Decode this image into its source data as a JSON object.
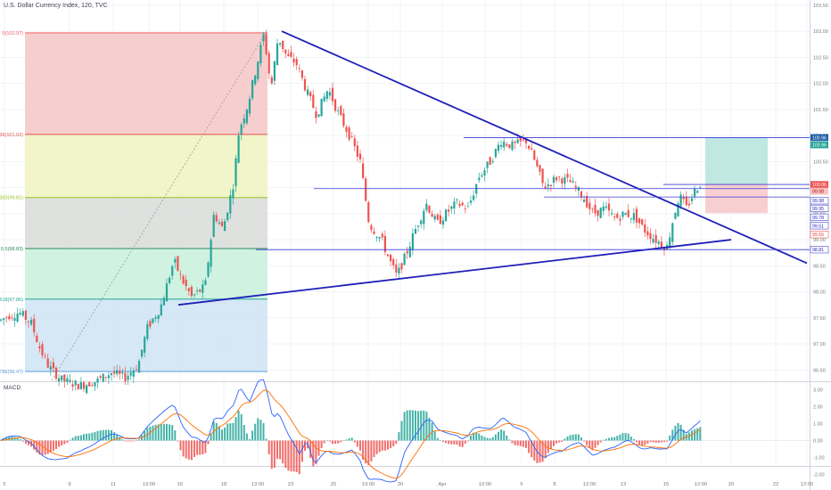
{
  "header": {
    "title": "U.S. Dollar Currency Index, 120, TVC"
  },
  "macd": {
    "label": "MACD"
  },
  "colors": {
    "up": "#26a69a",
    "down": "#ef5350",
    "trendline": "#1f1fb8",
    "hline": "#3a3ad6",
    "macd_line": "#2962ff",
    "signal_line": "#ff6d00",
    "grid": "#f0f3fa",
    "axis_text": "#7a7a7a"
  },
  "price_axis": {
    "min": 96.3,
    "max": 103.6,
    "ticks": [
      "103.50",
      "103.00",
      "102.50",
      "102.00",
      "101.50",
      "101.00",
      "100.50",
      "100.00",
      "99.50",
      "99.00",
      "98.50",
      "98.00",
      "97.50",
      "97.00",
      "96.50"
    ]
  },
  "macd_axis": {
    "min": -1.45,
    "max": 3.3,
    "ticks": [
      "3.00",
      "2.00",
      "1.00",
      "0.00",
      "-1.00",
      "-2.00"
    ]
  },
  "time_axis": {
    "labels": [
      "5",
      "9",
      "11",
      "13:00",
      "16",
      "18",
      "13:00",
      "23",
      "25",
      "13:00",
      "30",
      "Apr",
      "12:00",
      "6",
      "8",
      "12:00",
      "13",
      "15",
      "12:00",
      "20",
      "22",
      "12:00"
    ]
  },
  "fib_levels": [
    {
      "label": "0(102.97)",
      "price": 102.97,
      "color": "#f06060"
    },
    {
      "label": "0.236(101.02)",
      "price": 101.02,
      "color": "#e05050"
    },
    {
      "label": "0.382(99.81)",
      "price": 99.81,
      "color": "#9ac020"
    },
    {
      "label": "0.5(98.83)",
      "price": 98.83,
      "color": "#2e8b57"
    },
    {
      "label": "0.618(97.86)",
      "price": 97.86,
      "color": "#26a69a"
    },
    {
      "label": "0.786(96.47)",
      "price": 96.47,
      "color": "#5b9bd5"
    }
  ],
  "fib_zones": [
    {
      "from": 102.97,
      "to": 101.02,
      "color": "#f6c6c6"
    },
    {
      "from": 101.02,
      "to": 99.81,
      "color": "#eef3c0"
    },
    {
      "from": 99.81,
      "to": 98.83,
      "color": "#d8dcd8"
    },
    {
      "from": 98.83,
      "to": 97.86,
      "color": "#c8f0dc"
    },
    {
      "from": 97.86,
      "to": 96.47,
      "color": "#cfe3f3"
    }
  ],
  "position": {
    "target": 100.96,
    "entry": 100.06,
    "stop": 99.51
  },
  "price_badges": [
    {
      "text": "100.96",
      "price": 100.96,
      "bg": "#1f5fa8",
      "fg": "#ffffff"
    },
    {
      "text": "100.96",
      "price": 100.82,
      "bg": "#26a69a",
      "fg": "#ffffff"
    },
    {
      "text": "100.06",
      "price": 100.06,
      "bg": "#ef5350",
      "fg": "#ffffff"
    },
    {
      "text": "99.98",
      "price": 99.93,
      "bg": "#f7c2c0",
      "fg": "#b71c1c"
    },
    {
      "text": "99.98",
      "price": 99.75,
      "bg": "#ffffff",
      "fg": "#2323c0",
      "border": "#2323c0"
    },
    {
      "text": "99.95",
      "price": 99.6,
      "bg": "#ffffff",
      "fg": "#2323c0",
      "border": "#2323c0"
    },
    {
      "text": "99.78",
      "price": 99.43,
      "bg": "#ffffff",
      "fg": "#2323c0",
      "border": "#2323c0"
    },
    {
      "text": "99.51",
      "price": 99.27,
      "bg": "#ffffff",
      "fg": "#2323c0",
      "border": "#2323c0"
    },
    {
      "text": "99.55",
      "price": 99.1,
      "bg": "#ffffff",
      "fg": "#e53935",
      "border": "#e53935"
    },
    {
      "text": "98.81",
      "price": 98.81,
      "bg": "#ffffff",
      "fg": "#2323c0",
      "border": "#2323c0"
    }
  ]
}
